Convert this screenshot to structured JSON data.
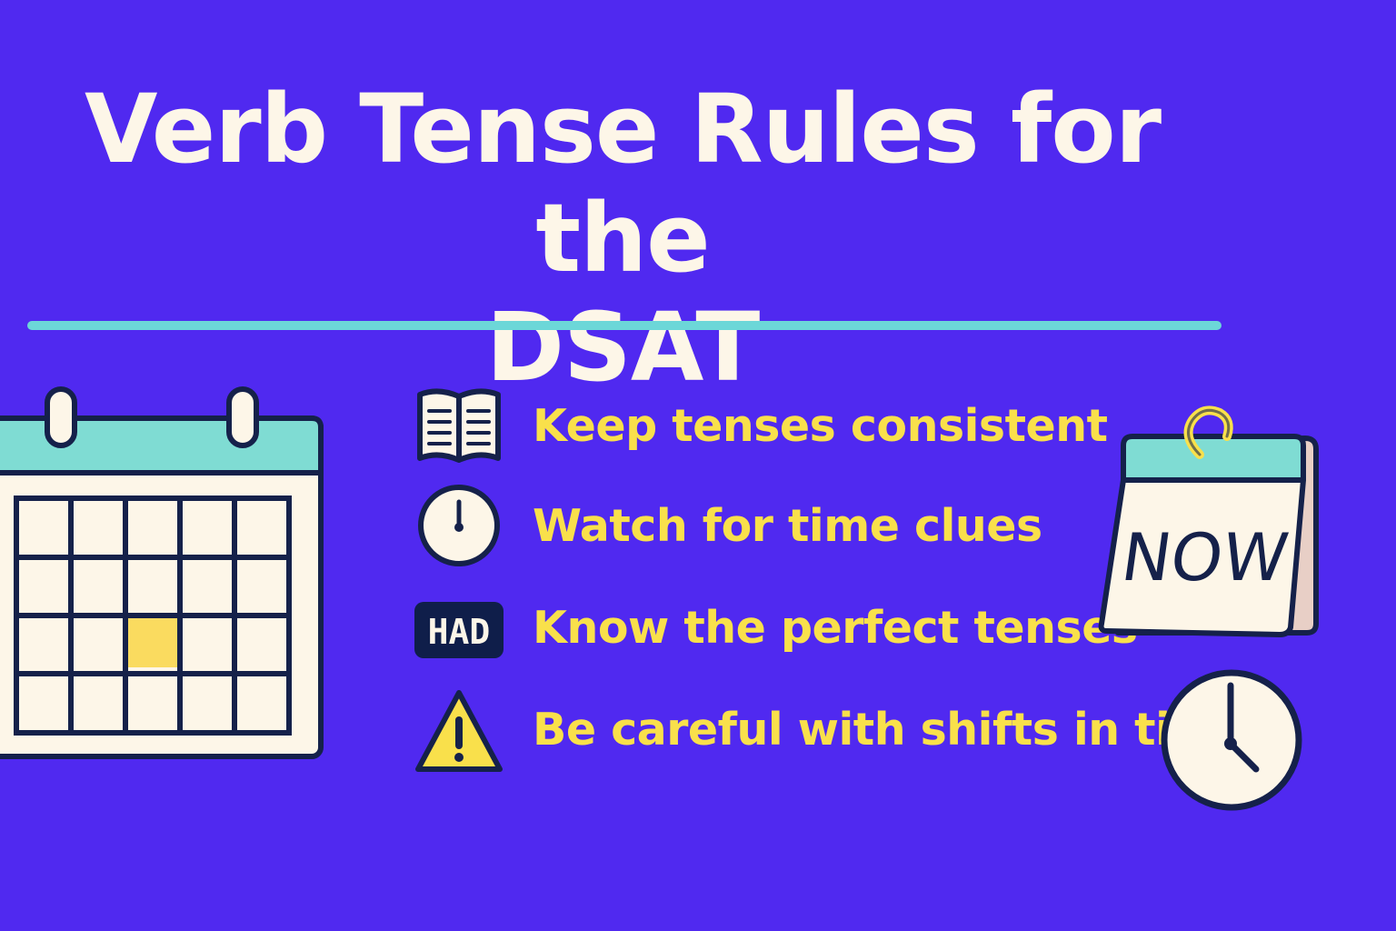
{
  "title": {
    "line1": "Verb Tense Rules for the",
    "line2": "DSAT"
  },
  "tips": [
    {
      "icon": "book-icon",
      "label": "Keep tenses consistent"
    },
    {
      "icon": "clock-icon",
      "label": "Watch for time clues"
    },
    {
      "icon": "had-badge-icon",
      "label": "Know the perfect tenses",
      "badge": "HAD"
    },
    {
      "icon": "warning-icon",
      "label": "Be careful with shifts in time"
    }
  ],
  "now_calendar": {
    "label": "NOW"
  },
  "colors": {
    "background": "#5029F0",
    "title": "#FDF6E8",
    "tip_text": "#F9E04B",
    "accent_teal": "#6CD7D8",
    "outline": "#15214A",
    "highlight": "#FADB5F"
  }
}
